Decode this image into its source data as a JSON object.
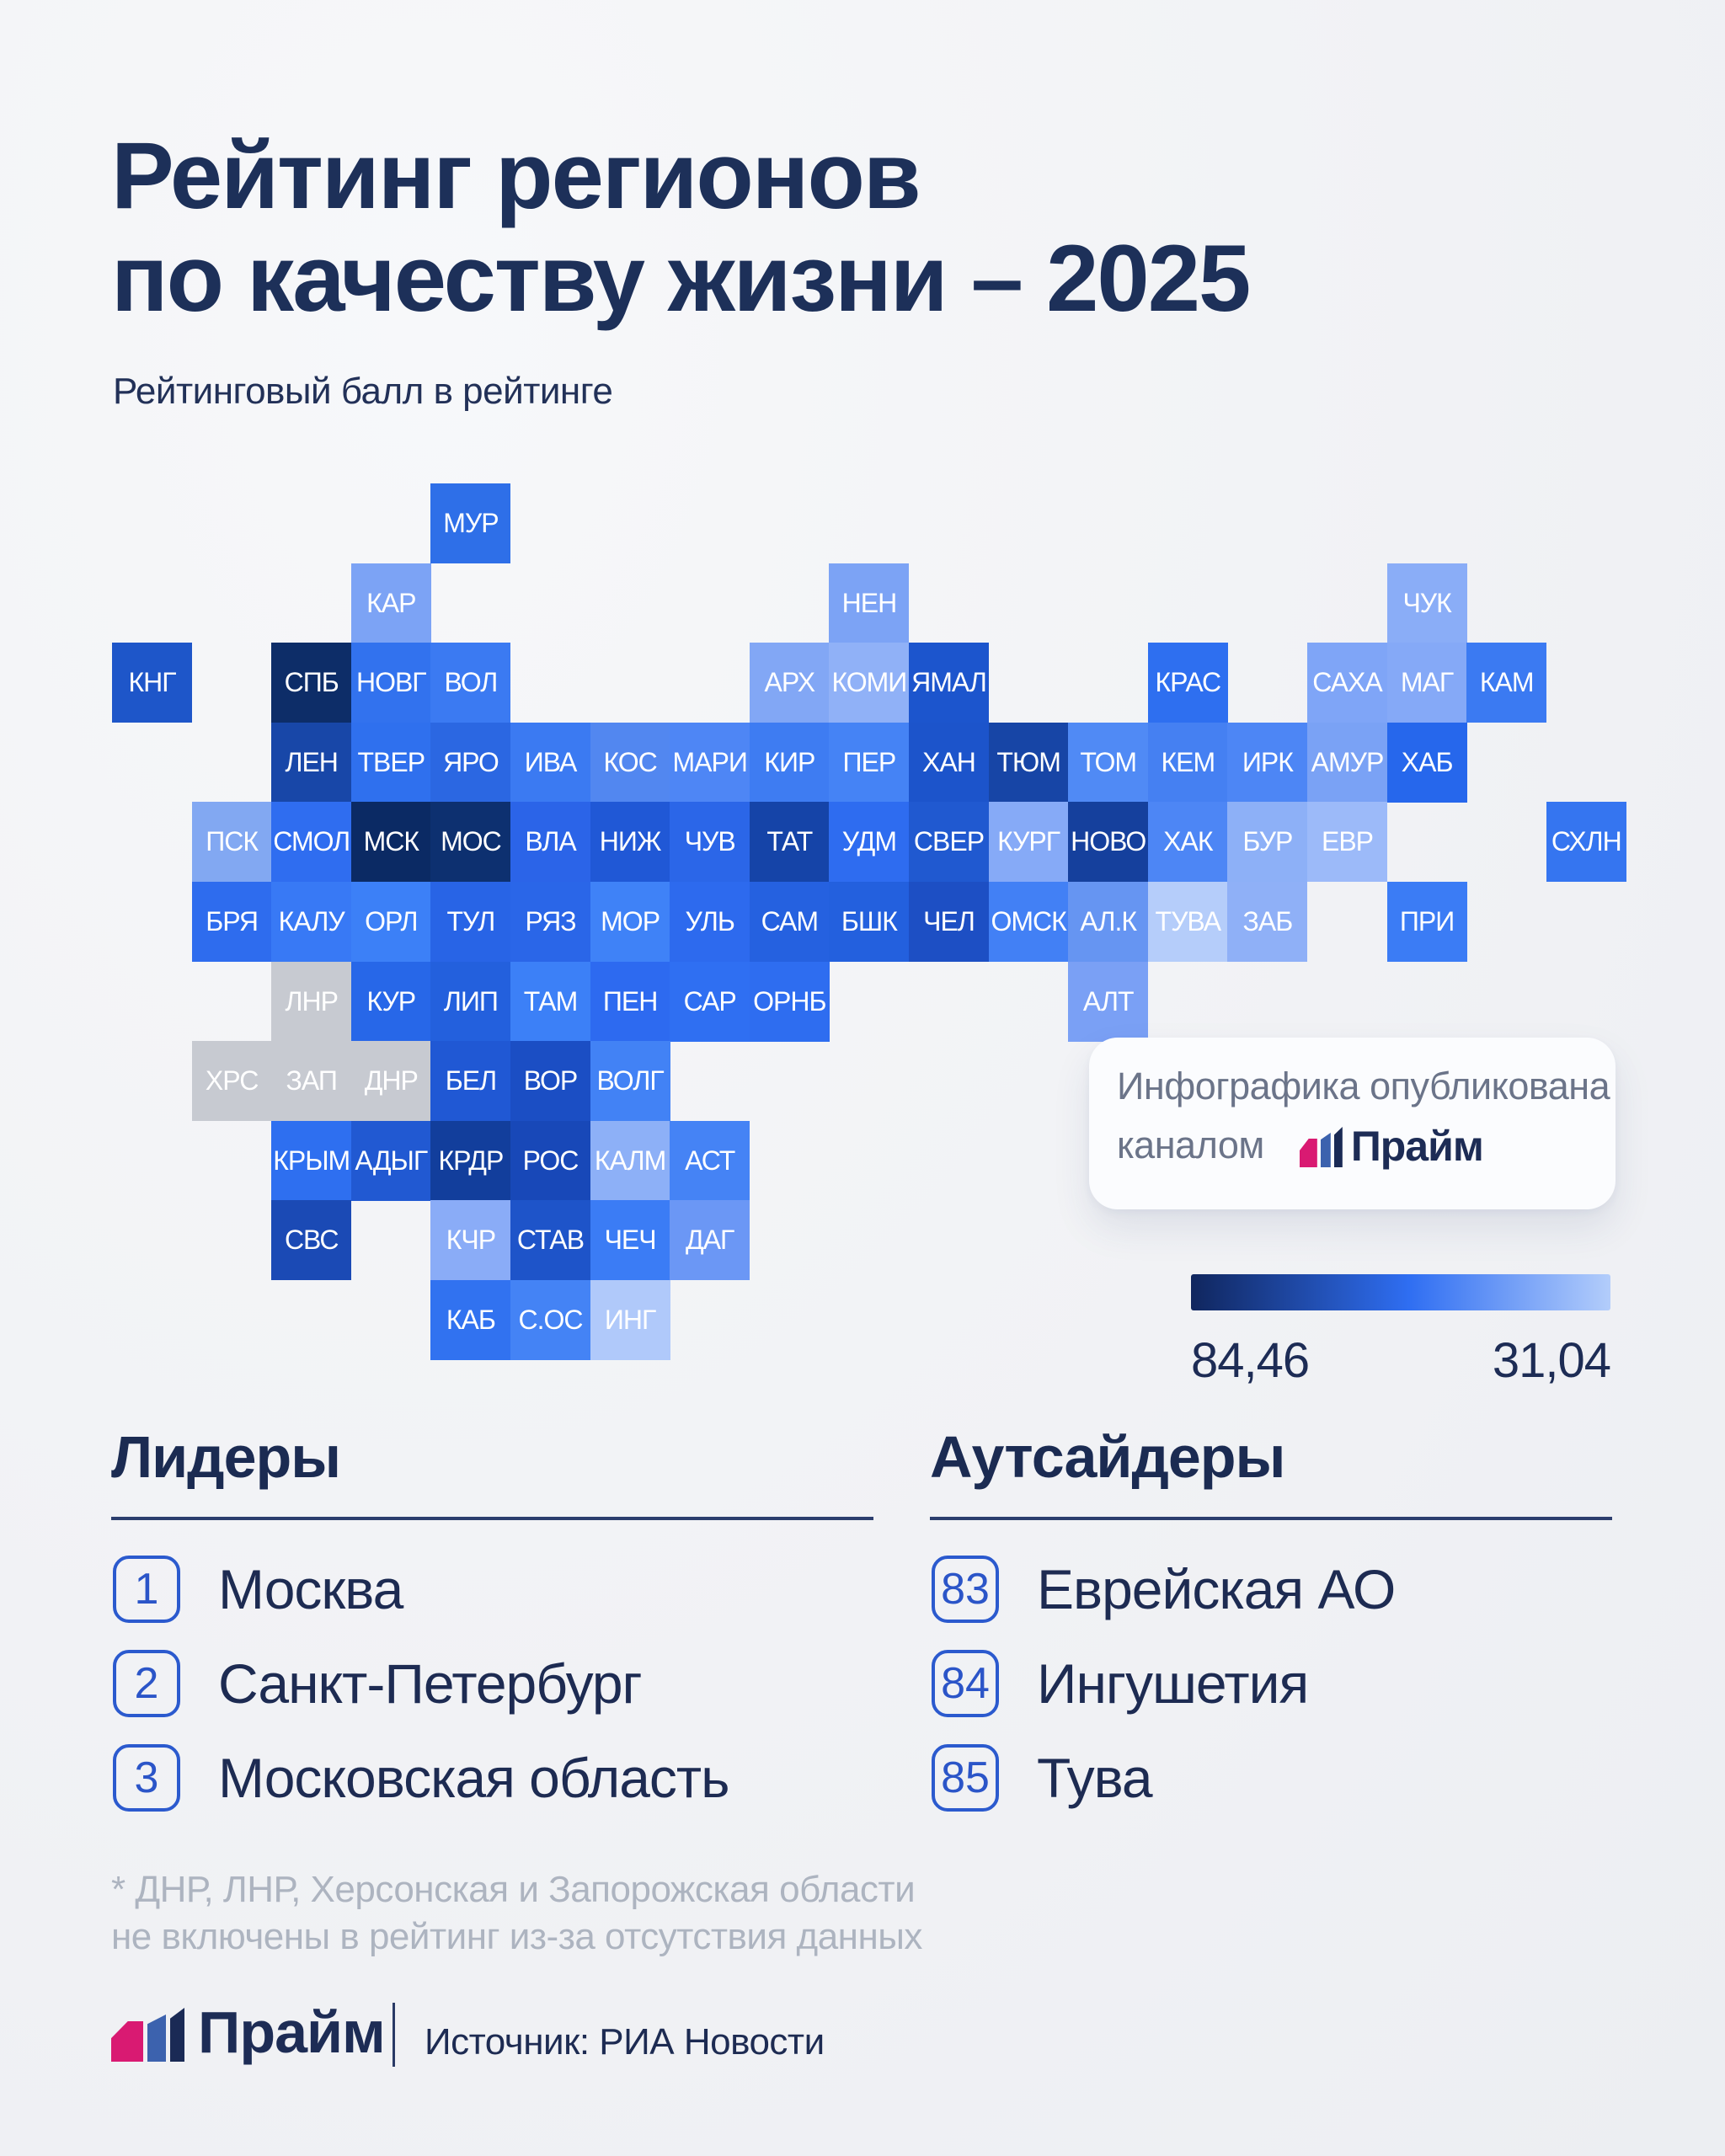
{
  "title": {
    "line1": "Рейтинг регионов",
    "line2": "по качеству жизни – 2025"
  },
  "subtitle": "Рейтинговый балл в рейтинге",
  "chart_data": {
    "type": "heatmap",
    "title": "Рейтинг регионов по качеству жизни – 2025",
    "value_label": "Рейтинговый балл в рейтинге",
    "scale": {
      "max_label": "84,46",
      "min_label": "31,04",
      "max": 84.46,
      "min": 31.04
    },
    "grid": {
      "cols": 19,
      "rows": 11,
      "tile_size": 94.6
    },
    "excluded_color": "#C7CAD1",
    "tiles": [
      {
        "label": "МУР",
        "col": 4,
        "row": 0,
        "color": "#2E6FE8"
      },
      {
        "label": "КАР",
        "col": 3,
        "row": 1,
        "color": "#7CA3F5"
      },
      {
        "label": "НЕН",
        "col": 9,
        "row": 1,
        "color": "#7CA3F5"
      },
      {
        "label": "ЧУК",
        "col": 16,
        "row": 1,
        "color": "#8AADF7"
      },
      {
        "label": "КНГ",
        "col": 0,
        "row": 2,
        "color": "#1E56C9"
      },
      {
        "label": "СПБ",
        "col": 2,
        "row": 2,
        "color": "#0D2D68"
      },
      {
        "label": "НОВГ",
        "col": 3,
        "row": 2,
        "color": "#3272EE"
      },
      {
        "label": "ВОЛ",
        "col": 4,
        "row": 2,
        "color": "#3B7AF2"
      },
      {
        "label": "АРХ",
        "col": 8,
        "row": 2,
        "color": "#82A7F5"
      },
      {
        "label": "КОМИ",
        "col": 9,
        "row": 2,
        "color": "#90B1F7"
      },
      {
        "label": "ЯМАЛ",
        "col": 10,
        "row": 2,
        "color": "#1C55CD"
      },
      {
        "label": "КРАС",
        "col": 13,
        "row": 2,
        "color": "#2E6FF0"
      },
      {
        "label": "САХА",
        "col": 15,
        "row": 2,
        "color": "#7FA5F7"
      },
      {
        "label": "МАГ",
        "col": 16,
        "row": 2,
        "color": "#85A9F7"
      },
      {
        "label": "КАМ",
        "col": 17,
        "row": 2,
        "color": "#3B7AF2"
      },
      {
        "label": "ЛЕН",
        "col": 2,
        "row": 3,
        "color": "#1847A8"
      },
      {
        "label": "ТВЕР",
        "col": 3,
        "row": 3,
        "color": "#2F70EE"
      },
      {
        "label": "ЯРО",
        "col": 4,
        "row": 3,
        "color": "#2B67E2"
      },
      {
        "label": "ИВА",
        "col": 5,
        "row": 3,
        "color": "#3B7AF2"
      },
      {
        "label": "КОС",
        "col": 6,
        "row": 3,
        "color": "#5287F0"
      },
      {
        "label": "МАРИ",
        "col": 7,
        "row": 3,
        "color": "#4E86F5"
      },
      {
        "label": "КИР",
        "col": 8,
        "row": 3,
        "color": "#3E7CF2"
      },
      {
        "label": "ПЕР",
        "col": 9,
        "row": 3,
        "color": "#4583F5"
      },
      {
        "label": "ХАН",
        "col": 10,
        "row": 3,
        "color": "#1C54CB"
      },
      {
        "label": "ТЮМ",
        "col": 11,
        "row": 3,
        "color": "#1745A6"
      },
      {
        "label": "ТОМ",
        "col": 12,
        "row": 3,
        "color": "#508AF5"
      },
      {
        "label": "КЕМ",
        "col": 13,
        "row": 3,
        "color": "#4580F2"
      },
      {
        "label": "ИРК",
        "col": 14,
        "row": 3,
        "color": "#4D86F5"
      },
      {
        "label": "АМУР",
        "col": 15,
        "row": 3,
        "color": "#7AA2F5"
      },
      {
        "label": "ХАБ",
        "col": 16,
        "row": 3,
        "color": "#2667EC"
      },
      {
        "label": "ПСК",
        "col": 1,
        "row": 4,
        "color": "#82A8F2"
      },
      {
        "label": "СМОЛ",
        "col": 2,
        "row": 4,
        "color": "#2F6DF0"
      },
      {
        "label": "МСК",
        "col": 3,
        "row": 4,
        "color": "#0B2A64"
      },
      {
        "label": "МОС",
        "col": 4,
        "row": 4,
        "color": "#0D3070"
      },
      {
        "label": "ВЛА",
        "col": 5,
        "row": 4,
        "color": "#2B64E8"
      },
      {
        "label": "НИЖ",
        "col": 6,
        "row": 4,
        "color": "#2058D6"
      },
      {
        "label": "ЧУВ",
        "col": 7,
        "row": 4,
        "color": "#2B66E8"
      },
      {
        "label": "ТАТ",
        "col": 8,
        "row": 4,
        "color": "#1544A8"
      },
      {
        "label": "УДМ",
        "col": 9,
        "row": 4,
        "color": "#2E6CF0"
      },
      {
        "label": "СВЕР",
        "col": 10,
        "row": 4,
        "color": "#2059D0"
      },
      {
        "label": "КУРГ",
        "col": 11,
        "row": 4,
        "color": "#86AAF7"
      },
      {
        "label": "НОВО",
        "col": 12,
        "row": 4,
        "color": "#15409D"
      },
      {
        "label": "ХАК",
        "col": 13,
        "row": 4,
        "color": "#4D86F5"
      },
      {
        "label": "БУР",
        "col": 14,
        "row": 4,
        "color": "#8DB0F7"
      },
      {
        "label": "ЕВР",
        "col": 15,
        "row": 4,
        "color": "#9CBAF9"
      },
      {
        "label": "СХЛН",
        "col": 18,
        "row": 4,
        "color": "#3575F0"
      },
      {
        "label": "БРЯ",
        "col": 1,
        "row": 5,
        "color": "#2E6CEE"
      },
      {
        "label": "КАЛУ",
        "col": 2,
        "row": 5,
        "color": "#3879F5"
      },
      {
        "label": "ОРЛ",
        "col": 3,
        "row": 5,
        "color": "#3C80F7"
      },
      {
        "label": "ТУЛ",
        "col": 4,
        "row": 5,
        "color": "#2864E6"
      },
      {
        "label": "РЯЗ",
        "col": 5,
        "row": 5,
        "color": "#2A66E8"
      },
      {
        "label": "МОР",
        "col": 6,
        "row": 5,
        "color": "#3F82F7"
      },
      {
        "label": "УЛЬ",
        "col": 7,
        "row": 5,
        "color": "#2D6AEE"
      },
      {
        "label": "САМ",
        "col": 8,
        "row": 5,
        "color": "#2561E0"
      },
      {
        "label": "БШК",
        "col": 9,
        "row": 5,
        "color": "#2360DE"
      },
      {
        "label": "ЧЕЛ",
        "col": 10,
        "row": 5,
        "color": "#1D4FC4"
      },
      {
        "label": "ОМСК",
        "col": 11,
        "row": 5,
        "color": "#4280F5"
      },
      {
        "label": "АЛ.К",
        "col": 12,
        "row": 5,
        "color": "#6695F2"
      },
      {
        "label": "ТУВА",
        "col": 13,
        "row": 5,
        "color": "#B5CDFA"
      },
      {
        "label": "ЗАБ",
        "col": 14,
        "row": 5,
        "color": "#8FB0F7"
      },
      {
        "label": "ПРИ",
        "col": 16,
        "row": 5,
        "color": "#3B7CF5"
      },
      {
        "label": "ЛНР",
        "col": 2,
        "row": 6,
        "color": "#C7CAD1"
      },
      {
        "label": "КУР",
        "col": 3,
        "row": 6,
        "color": "#2767E8"
      },
      {
        "label": "ЛИП",
        "col": 4,
        "row": 6,
        "color": "#2360DD"
      },
      {
        "label": "ТАМ",
        "col": 5,
        "row": 6,
        "color": "#3C80F7"
      },
      {
        "label": "ПЕН",
        "col": 6,
        "row": 6,
        "color": "#2D6AF0"
      },
      {
        "label": "САР",
        "col": 7,
        "row": 6,
        "color": "#2F6FF2"
      },
      {
        "label": "ОРНБ",
        "col": 8,
        "row": 6,
        "color": "#2E6DF0"
      },
      {
        "label": "АЛТ",
        "col": 12,
        "row": 6,
        "color": "#7AA0F5"
      },
      {
        "label": "ХРС",
        "col": 1,
        "row": 7,
        "color": "#C7CAD1"
      },
      {
        "label": "ЗАП",
        "col": 2,
        "row": 7,
        "color": "#C7CAD1"
      },
      {
        "label": "ДНР",
        "col": 3,
        "row": 7,
        "color": "#C7CAD1"
      },
      {
        "label": "БЕЛ",
        "col": 4,
        "row": 7,
        "color": "#2058D4"
      },
      {
        "label": "ВОР",
        "col": 5,
        "row": 7,
        "color": "#1B4EC4"
      },
      {
        "label": "ВОЛГ",
        "col": 6,
        "row": 7,
        "color": "#4282F5"
      },
      {
        "label": "КРЫМ",
        "col": 2,
        "row": 8,
        "color": "#2E6FF0"
      },
      {
        "label": "АДЫГ",
        "col": 3,
        "row": 8,
        "color": "#2159D2"
      },
      {
        "label": "КРДР",
        "col": 4,
        "row": 8,
        "color": "#123E9C"
      },
      {
        "label": "РОС",
        "col": 5,
        "row": 8,
        "color": "#1848B8"
      },
      {
        "label": "КАЛМ",
        "col": 6,
        "row": 8,
        "color": "#8DB0F7"
      },
      {
        "label": "АСТ",
        "col": 7,
        "row": 8,
        "color": "#4583F5"
      },
      {
        "label": "СВС",
        "col": 2,
        "row": 9,
        "color": "#1B4AB5"
      },
      {
        "label": "КЧР",
        "col": 4,
        "row": 9,
        "color": "#8AACF7"
      },
      {
        "label": "СТАВ",
        "col": 5,
        "row": 9,
        "color": "#1E54C9"
      },
      {
        "label": "ЧЕЧ",
        "col": 6,
        "row": 9,
        "color": "#3B7CF5"
      },
      {
        "label": "ДАГ",
        "col": 7,
        "row": 9,
        "color": "#6B97F5"
      },
      {
        "label": "КАБ",
        "col": 4,
        "row": 10,
        "color": "#3172F0"
      },
      {
        "label": "С.ОС",
        "col": 5,
        "row": 10,
        "color": "#4483F5"
      },
      {
        "label": "ИНГ",
        "col": 6,
        "row": 10,
        "color": "#B0C9FA"
      }
    ]
  },
  "callout": {
    "line1": "Инфографика опубликована",
    "line2_prefix": "каналом",
    "brand": "Прайм"
  },
  "legend": {
    "max_label": "84,46",
    "min_label": "31,04",
    "gradient": [
      "#10265E",
      "#2F6EF2",
      "#B3CDFB"
    ]
  },
  "leaders": {
    "heading": "Лидеры",
    "items": [
      {
        "rank": "1",
        "name": "Москва"
      },
      {
        "rank": "2",
        "name": "Санкт-Петербург"
      },
      {
        "rank": "3",
        "name": "Московская область"
      }
    ]
  },
  "outsiders": {
    "heading": "Аутсайдеры",
    "items": [
      {
        "rank": "83",
        "name": "Еврейская АО"
      },
      {
        "rank": "84",
        "name": "Ингушетия"
      },
      {
        "rank": "85",
        "name": "Тува"
      }
    ]
  },
  "footnote": {
    "line1": "* ДНР, ЛНР, Херсонская и Запорожская области",
    "line2": "не включены в рейтинг из-за отсутствия данных"
  },
  "footer": {
    "brand": "Прайм",
    "source": "Источник: РИА Новости"
  },
  "colors": {
    "background": "#F2F3F5",
    "title_navy": "#1D3059",
    "tile_text": "#FFFFFF",
    "excluded_gray": "#C7CAD1",
    "badge_border_blue": "#2B5ACE",
    "badge_number_blue": "#2B55C8",
    "footnote_gray": "#ADB4C0",
    "brand_pink": "#D91A72",
    "brand_blue": "#3C62AE",
    "brand_navy": "#1A2A55"
  }
}
